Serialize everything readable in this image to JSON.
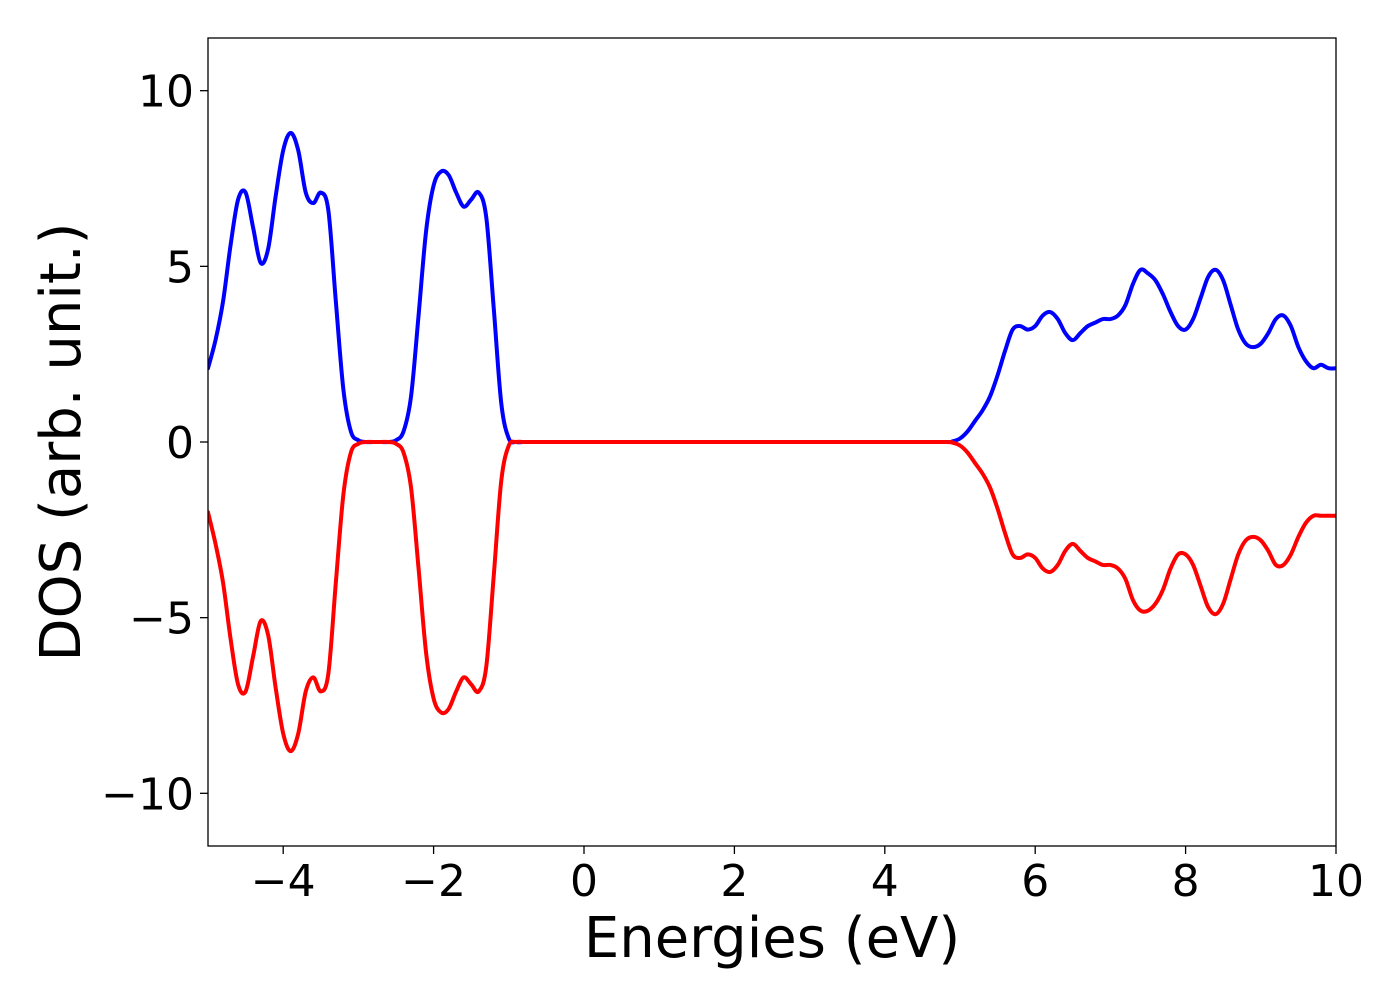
{
  "chart_data": {
    "type": "line",
    "title": "",
    "xlabel": "Energies (eV)",
    "ylabel": "DOS (arb. unit.)",
    "xlim": [
      -5,
      10
    ],
    "ylim": [
      -11.5,
      11.5
    ],
    "grid": false,
    "x_ticks": [
      {
        "value": -4,
        "label": "−4"
      },
      {
        "value": -2,
        "label": "−2"
      },
      {
        "value": 0,
        "label": "0"
      },
      {
        "value": 2,
        "label": "2"
      },
      {
        "value": 4,
        "label": "4"
      },
      {
        "value": 6,
        "label": "6"
      },
      {
        "value": 8,
        "label": "8"
      },
      {
        "value": 10,
        "label": "10"
      }
    ],
    "y_ticks": [
      {
        "value": 10,
        "label": "10"
      },
      {
        "value": 5,
        "label": "5"
      },
      {
        "value": 0,
        "label": "0"
      },
      {
        "value": -5,
        "label": "−5"
      },
      {
        "value": -10,
        "label": "−10"
      }
    ],
    "series": [
      {
        "color": "#0000ff",
        "x": [
          -5.0,
          -4.9,
          -4.8,
          -4.7,
          -4.6,
          -4.5,
          -4.4,
          -4.3,
          -4.2,
          -4.1,
          -4.0,
          -3.9,
          -3.8,
          -3.7,
          -3.6,
          -3.5,
          -3.4,
          -3.3,
          -3.2,
          -3.1,
          -3.0,
          -2.9,
          -2.8,
          -2.7,
          -2.6,
          -2.5,
          -2.4,
          -2.3,
          -2.2,
          -2.1,
          -2.0,
          -1.9,
          -1.8,
          -1.7,
          -1.6,
          -1.5,
          -1.4,
          -1.3,
          -1.2,
          -1.1,
          -1.0,
          -0.9,
          -0.8,
          -0.7,
          -0.6,
          -0.5,
          0.0,
          2.0,
          4.0,
          4.8,
          4.9,
          5.0,
          5.1,
          5.2,
          5.3,
          5.4,
          5.5,
          5.6,
          5.7,
          5.8,
          5.9,
          6.0,
          6.1,
          6.2,
          6.3,
          6.4,
          6.5,
          6.6,
          6.7,
          6.8,
          6.9,
          7.0,
          7.1,
          7.2,
          7.3,
          7.4,
          7.5,
          7.6,
          7.7,
          7.8,
          7.9,
          8.0,
          8.1,
          8.2,
          8.3,
          8.4,
          8.5,
          8.6,
          8.7,
          8.8,
          8.9,
          9.0,
          9.1,
          9.2,
          9.3,
          9.4,
          9.5,
          9.6,
          9.7,
          9.8,
          9.9,
          10.0
        ],
        "y": [
          2.1,
          2.9,
          4.0,
          5.6,
          6.9,
          7.1,
          6.1,
          5.1,
          5.5,
          7.0,
          8.3,
          8.8,
          8.3,
          7.1,
          6.8,
          7.1,
          6.6,
          4.0,
          1.5,
          0.3,
          0.05,
          0.0,
          0.0,
          0.0,
          0.0,
          0.05,
          0.3,
          1.3,
          3.6,
          6.0,
          7.3,
          7.7,
          7.6,
          7.1,
          6.7,
          6.9,
          7.1,
          6.4,
          3.8,
          1.1,
          0.1,
          0.0,
          0.0,
          0.0,
          0.0,
          0.0,
          0.0,
          0.0,
          0.0,
          0.0,
          0.02,
          0.1,
          0.3,
          0.6,
          0.9,
          1.3,
          1.9,
          2.6,
          3.2,
          3.3,
          3.2,
          3.3,
          3.6,
          3.7,
          3.5,
          3.1,
          2.9,
          3.1,
          3.3,
          3.4,
          3.5,
          3.5,
          3.6,
          3.9,
          4.5,
          4.9,
          4.8,
          4.6,
          4.2,
          3.7,
          3.3,
          3.2,
          3.5,
          4.1,
          4.7,
          4.9,
          4.6,
          3.9,
          3.2,
          2.8,
          2.7,
          2.8,
          3.1,
          3.5,
          3.6,
          3.3,
          2.7,
          2.3,
          2.1,
          2.2,
          2.1,
          2.1
        ]
      },
      {
        "color": "#ff0000",
        "x": [
          -5.0,
          -4.9,
          -4.8,
          -4.7,
          -4.6,
          -4.5,
          -4.4,
          -4.3,
          -4.2,
          -4.1,
          -4.0,
          -3.9,
          -3.8,
          -3.7,
          -3.6,
          -3.5,
          -3.4,
          -3.3,
          -3.2,
          -3.1,
          -3.0,
          -2.9,
          -2.8,
          -2.7,
          -2.6,
          -2.5,
          -2.4,
          -2.3,
          -2.2,
          -2.1,
          -2.0,
          -1.9,
          -1.8,
          -1.7,
          -1.6,
          -1.5,
          -1.4,
          -1.3,
          -1.2,
          -1.1,
          -1.0,
          -0.9,
          -0.8,
          -0.7,
          -0.6,
          -0.5,
          0.0,
          2.0,
          4.0,
          4.8,
          4.9,
          5.0,
          5.1,
          5.2,
          5.3,
          5.4,
          5.5,
          5.6,
          5.7,
          5.8,
          5.9,
          6.0,
          6.1,
          6.2,
          6.3,
          6.4,
          6.5,
          6.6,
          6.7,
          6.8,
          6.9,
          7.0,
          7.1,
          7.2,
          7.3,
          7.4,
          7.5,
          7.6,
          7.7,
          7.8,
          7.9,
          8.0,
          8.1,
          8.2,
          8.3,
          8.4,
          8.5,
          8.6,
          8.7,
          8.8,
          8.9,
          9.0,
          9.1,
          9.2,
          9.3,
          9.4,
          9.5,
          9.6,
          9.7,
          9.8,
          9.9,
          10.0
        ],
        "y": [
          -2.0,
          -2.9,
          -4.0,
          -5.6,
          -6.9,
          -7.1,
          -6.1,
          -5.1,
          -5.5,
          -7.0,
          -8.3,
          -8.8,
          -8.3,
          -7.1,
          -6.7,
          -7.1,
          -6.6,
          -4.0,
          -1.5,
          -0.3,
          -0.05,
          0.0,
          0.0,
          0.0,
          0.0,
          -0.05,
          -0.3,
          -1.3,
          -3.6,
          -6.0,
          -7.3,
          -7.7,
          -7.6,
          -7.1,
          -6.7,
          -6.9,
          -7.1,
          -6.4,
          -3.8,
          -1.1,
          -0.1,
          0.0,
          0.0,
          0.0,
          0.0,
          0.0,
          0.0,
          0.0,
          0.0,
          0.0,
          -0.02,
          -0.1,
          -0.3,
          -0.6,
          -0.9,
          -1.3,
          -1.9,
          -2.6,
          -3.2,
          -3.3,
          -3.2,
          -3.3,
          -3.6,
          -3.7,
          -3.5,
          -3.1,
          -2.9,
          -3.1,
          -3.3,
          -3.4,
          -3.5,
          -3.5,
          -3.6,
          -3.9,
          -4.5,
          -4.8,
          -4.8,
          -4.6,
          -4.2,
          -3.6,
          -3.2,
          -3.2,
          -3.5,
          -4.1,
          -4.7,
          -4.9,
          -4.6,
          -3.9,
          -3.2,
          -2.8,
          -2.7,
          -2.8,
          -3.1,
          -3.5,
          -3.5,
          -3.2,
          -2.7,
          -2.3,
          -2.1,
          -2.1,
          -2.1,
          -2.1
        ]
      }
    ]
  }
}
